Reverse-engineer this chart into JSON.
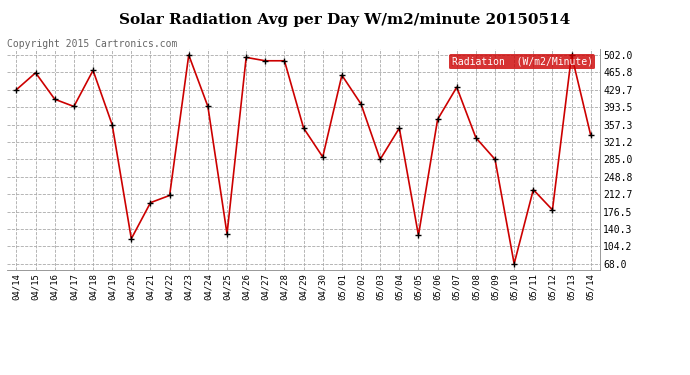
{
  "title": "Solar Radiation Avg per Day W/m2/minute 20150514",
  "copyright_text": "Copyright 2015 Cartronics.com",
  "legend_label": "Radiation  (W/m2/Minute)",
  "background_color": "#ffffff",
  "plot_bg_color": "#ffffff",
  "line_color": "#cc0000",
  "marker_color": "#000000",
  "grid_color": "#aaaaaa",
  "dates": [
    "04/14",
    "04/15",
    "04/16",
    "04/17",
    "04/18",
    "04/19",
    "04/20",
    "04/21",
    "04/22",
    "04/23",
    "04/24",
    "04/25",
    "04/26",
    "04/27",
    "04/28",
    "04/29",
    "04/30",
    "05/01",
    "05/02",
    "05/03",
    "05/04",
    "05/05",
    "05/06",
    "05/07",
    "05/08",
    "05/09",
    "05/10",
    "05/11",
    "05/12",
    "05/13",
    "05/14"
  ],
  "values": [
    430,
    465,
    410,
    395,
    470,
    357,
    120,
    195,
    210,
    502,
    395,
    130,
    497,
    490,
    490,
    350,
    290,
    460,
    400,
    285,
    350,
    127,
    368,
    435,
    330,
    285,
    68,
    222,
    180,
    502,
    335
  ],
  "ylim_min": 55,
  "ylim_max": 515,
  "ytick_values": [
    68.0,
    104.2,
    140.3,
    176.5,
    212.7,
    248.8,
    285.0,
    321.2,
    357.3,
    393.5,
    429.7,
    465.8,
    502.0
  ],
  "ytick_labels": [
    "68.0",
    "104.2",
    "140.3",
    "176.5",
    "212.7",
    "248.8",
    "285.0",
    "321.2",
    "357.3",
    "393.5",
    "429.7",
    "465.8",
    "502.0"
  ],
  "title_fontsize": 11,
  "legend_bg_color": "#cc0000",
  "legend_text_color": "#ffffff",
  "copyright_color": "#666666",
  "copyright_fontsize": 7
}
